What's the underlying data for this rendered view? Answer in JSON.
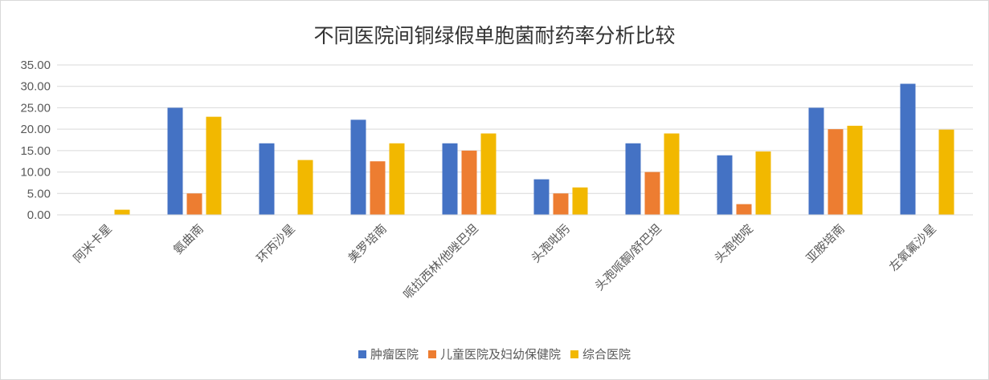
{
  "chart_data": {
    "type": "bar",
    "title": "不同医院间铜绿假单胞菌耐药率分析比较",
    "categories": [
      "阿米卡星",
      "氨曲南",
      "环丙沙星",
      "美罗培南",
      "哌拉西林/他唑巴坦",
      "头孢吡肟",
      "头孢哌酮/舒巴坦",
      "头孢他啶",
      "亚胺培南",
      "左氧氟沙星"
    ],
    "series": [
      {
        "name": "肿瘤医院",
        "color": "#4472C4",
        "values": [
          0,
          25.0,
          16.7,
          22.2,
          16.7,
          8.3,
          16.7,
          13.9,
          25.0,
          30.6
        ]
      },
      {
        "name": "儿童医院及妇幼保健院",
        "color": "#ED7D31",
        "values": [
          0,
          5.0,
          0,
          12.5,
          15.0,
          5.0,
          10.0,
          2.5,
          20.0,
          0
        ]
      },
      {
        "name": "综合医院",
        "color": "#F2B800",
        "values": [
          1.2,
          22.9,
          12.8,
          16.7,
          19.0,
          6.4,
          19.0,
          14.8,
          20.8,
          19.9
        ]
      }
    ],
    "ylim": [
      0,
      35
    ],
    "yticks": [
      "0.00",
      "5.00",
      "10.00",
      "15.00",
      "20.00",
      "25.00",
      "30.00",
      "35.00"
    ],
    "grid": true,
    "legend_position": "bottom"
  }
}
